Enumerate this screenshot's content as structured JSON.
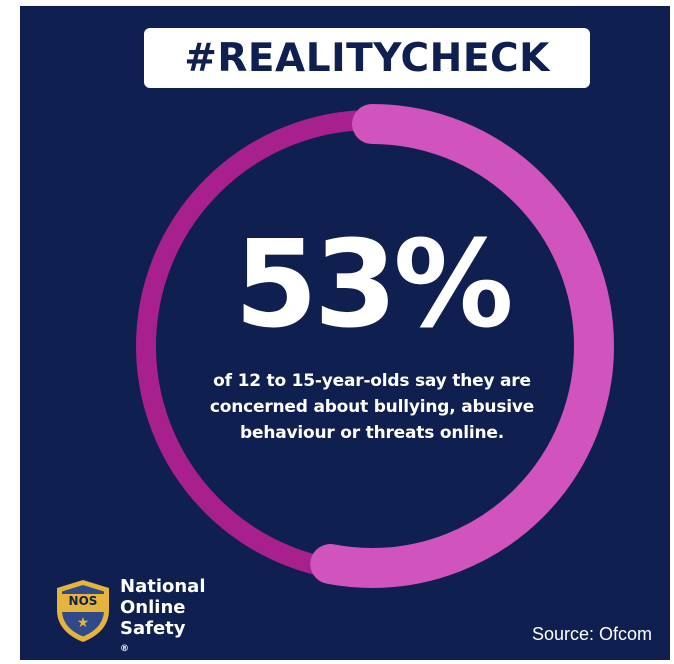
{
  "header": {
    "hashtag": "#REALITYCHECK"
  },
  "stat": {
    "value": "53%",
    "percent": 53,
    "caption_lines": [
      "of 12 to 15-year-olds say they are",
      "concerned about bullying, abusive",
      "behaviour or threats online."
    ]
  },
  "brand": {
    "shield_text": "NOS",
    "name_lines": [
      "National",
      "Online",
      "Safety"
    ],
    "registered_mark": "®"
  },
  "footer": {
    "source": "Source: Ofcom"
  },
  "colors": {
    "background": "#0f1f4f",
    "ring_track": "#a8208e",
    "ring_progress": "#d153bd",
    "shield_gold": "#e6b43c",
    "shield_fill": "#2f4a8a"
  },
  "icons": {
    "shield": "nos-shield-icon",
    "star": "star-icon"
  }
}
